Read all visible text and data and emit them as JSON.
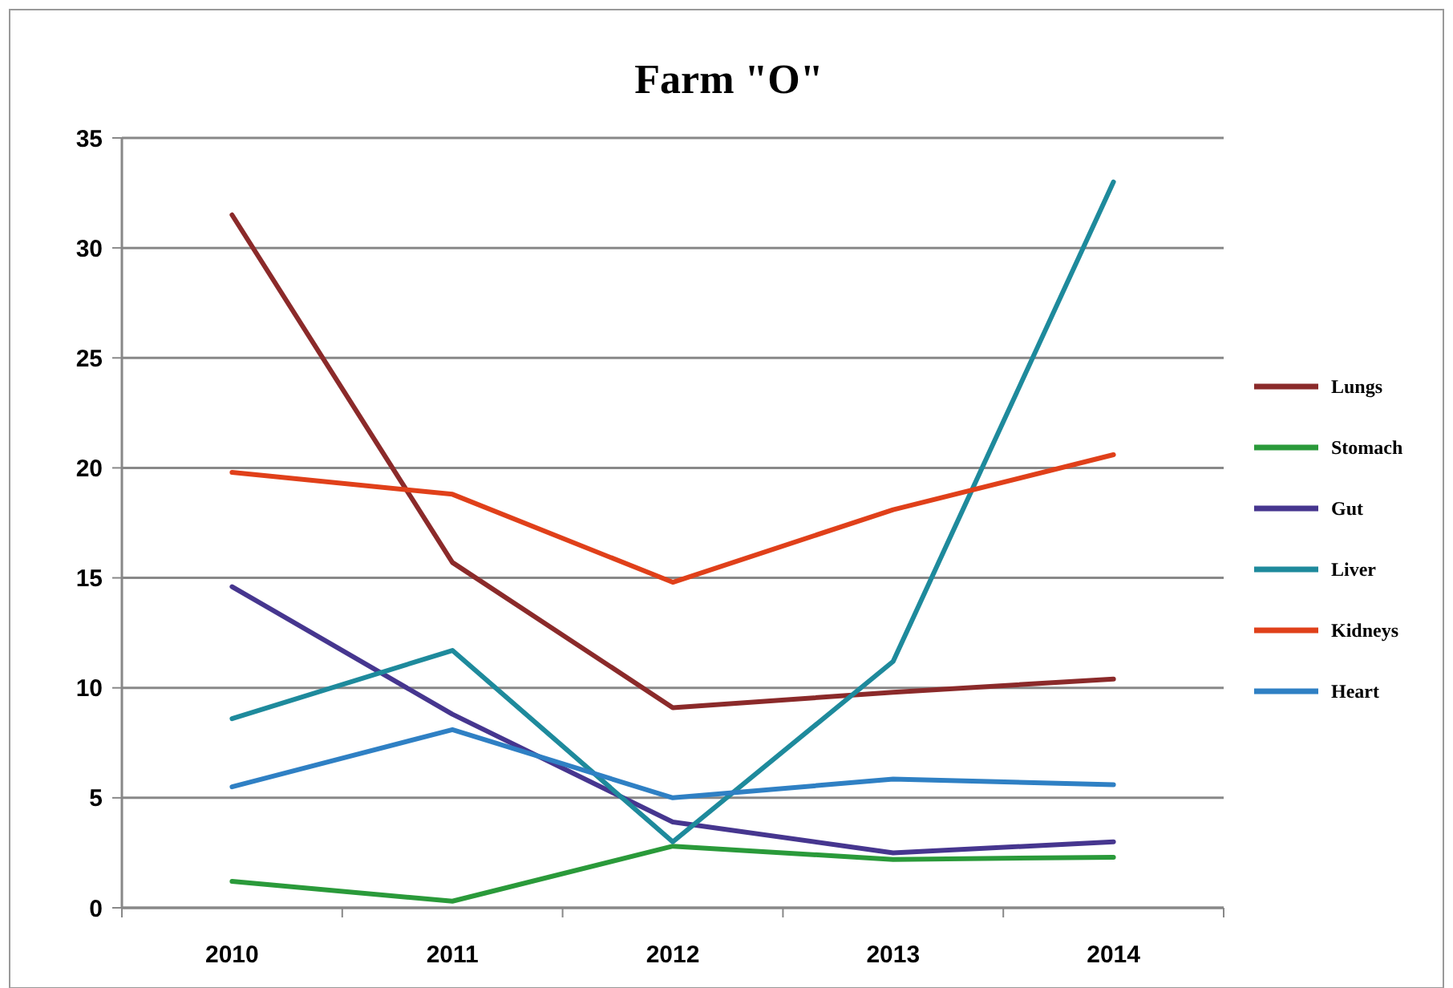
{
  "chart_data": {
    "type": "line",
    "title": "Farm \"O\"",
    "categories": [
      "2010",
      "2011",
      "2012",
      "2013",
      "2014"
    ],
    "series": [
      {
        "name": "Lungs",
        "color": "#8b2a2a",
        "values": [
          31.5,
          15.7,
          9.1,
          9.8,
          10.4
        ]
      },
      {
        "name": "Stomach",
        "color": "#2a9a3a",
        "values": [
          1.2,
          0.3,
          2.8,
          2.2,
          2.3
        ]
      },
      {
        "name": "Gut",
        "color": "#46368f",
        "values": [
          14.6,
          8.8,
          3.9,
          2.5,
          3.0
        ]
      },
      {
        "name": "Liver",
        "color": "#1e8a9c",
        "values": [
          8.6,
          11.7,
          3.0,
          11.2,
          33.0
        ]
      },
      {
        "name": "Kidneys",
        "color": "#e0401a",
        "values": [
          19.8,
          18.8,
          14.8,
          18.1,
          20.6
        ]
      },
      {
        "name": "Heart",
        "color": "#2f80c4",
        "values": [
          5.5,
          8.1,
          5.0,
          5.85,
          5.6
        ]
      }
    ],
    "ylim": [
      0,
      35
    ],
    "yticks": [
      0,
      5,
      10,
      15,
      20,
      25,
      30,
      35
    ],
    "grid": "y",
    "legend": "right",
    "marker": "none",
    "line_style": "solid"
  }
}
